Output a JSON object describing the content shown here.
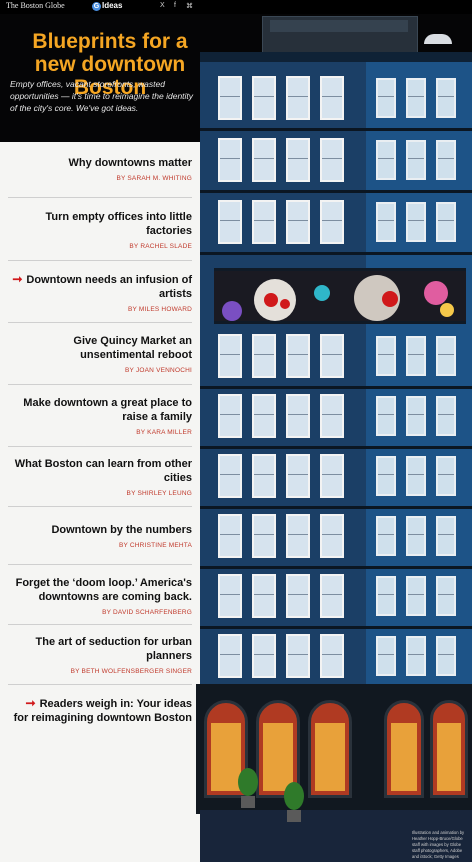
{
  "topbar": {
    "logo": "The Boston Globe",
    "brand_mark": "G",
    "brand": "Ideas",
    "social": [
      "X",
      "f",
      "⌘"
    ]
  },
  "hero": {
    "title": "Blueprints for a new downtown Boston",
    "subtitle": "Empty offices, vacant storefronts, wasted opportunities — it's time to reimagine the identity of the city's core. We've got ideas."
  },
  "articles": [
    {
      "headline": "Why downtowns matter",
      "byline": "BY SARAH M. WHITING",
      "current": false
    },
    {
      "headline": "Turn empty offices into little factories",
      "byline": "BY RACHEL SLADE",
      "current": false
    },
    {
      "headline": "Downtown needs an infusion of artists",
      "byline": "BY MILES HOWARD",
      "current": true
    },
    {
      "headline": "Give Quincy Market an unsentimental reboot",
      "byline": "BY JOAN VENNOCHI",
      "current": false
    },
    {
      "headline": "Make downtown a great place to raise a family",
      "byline": "BY KARA MILLER",
      "current": false
    },
    {
      "headline": "What Boston can learn from other cities",
      "byline": "BY SHIRLEY LEUNG",
      "current": false
    },
    {
      "headline": "Downtown by the numbers",
      "byline": "BY CHRISTINE MEHTA",
      "current": false
    },
    {
      "headline": "Forget the ‘doom loop.’ America's downtowns are coming back.",
      "byline": "BY DAVID SCHARFENBERG",
      "current": false
    },
    {
      "headline": "The art of seduction for urban planners",
      "byline": "BY BETH WOLFENSBERGER SINGER",
      "current": false
    },
    {
      "headline": "Readers weigh in: Your ideas for reimagining downtown Boston",
      "byline": "",
      "current": true
    }
  ],
  "credit": "Illustration and animation by Heather Hopp-Bruce/Globe staff with images by Globe staff photographers, Adobe and iStock; Getty Images",
  "colors": {
    "accent": "#f5a623",
    "byline": "#c0392b",
    "arrow": "#d0191b",
    "building_front": "#1b3f66",
    "building_side": "#1d5387"
  }
}
